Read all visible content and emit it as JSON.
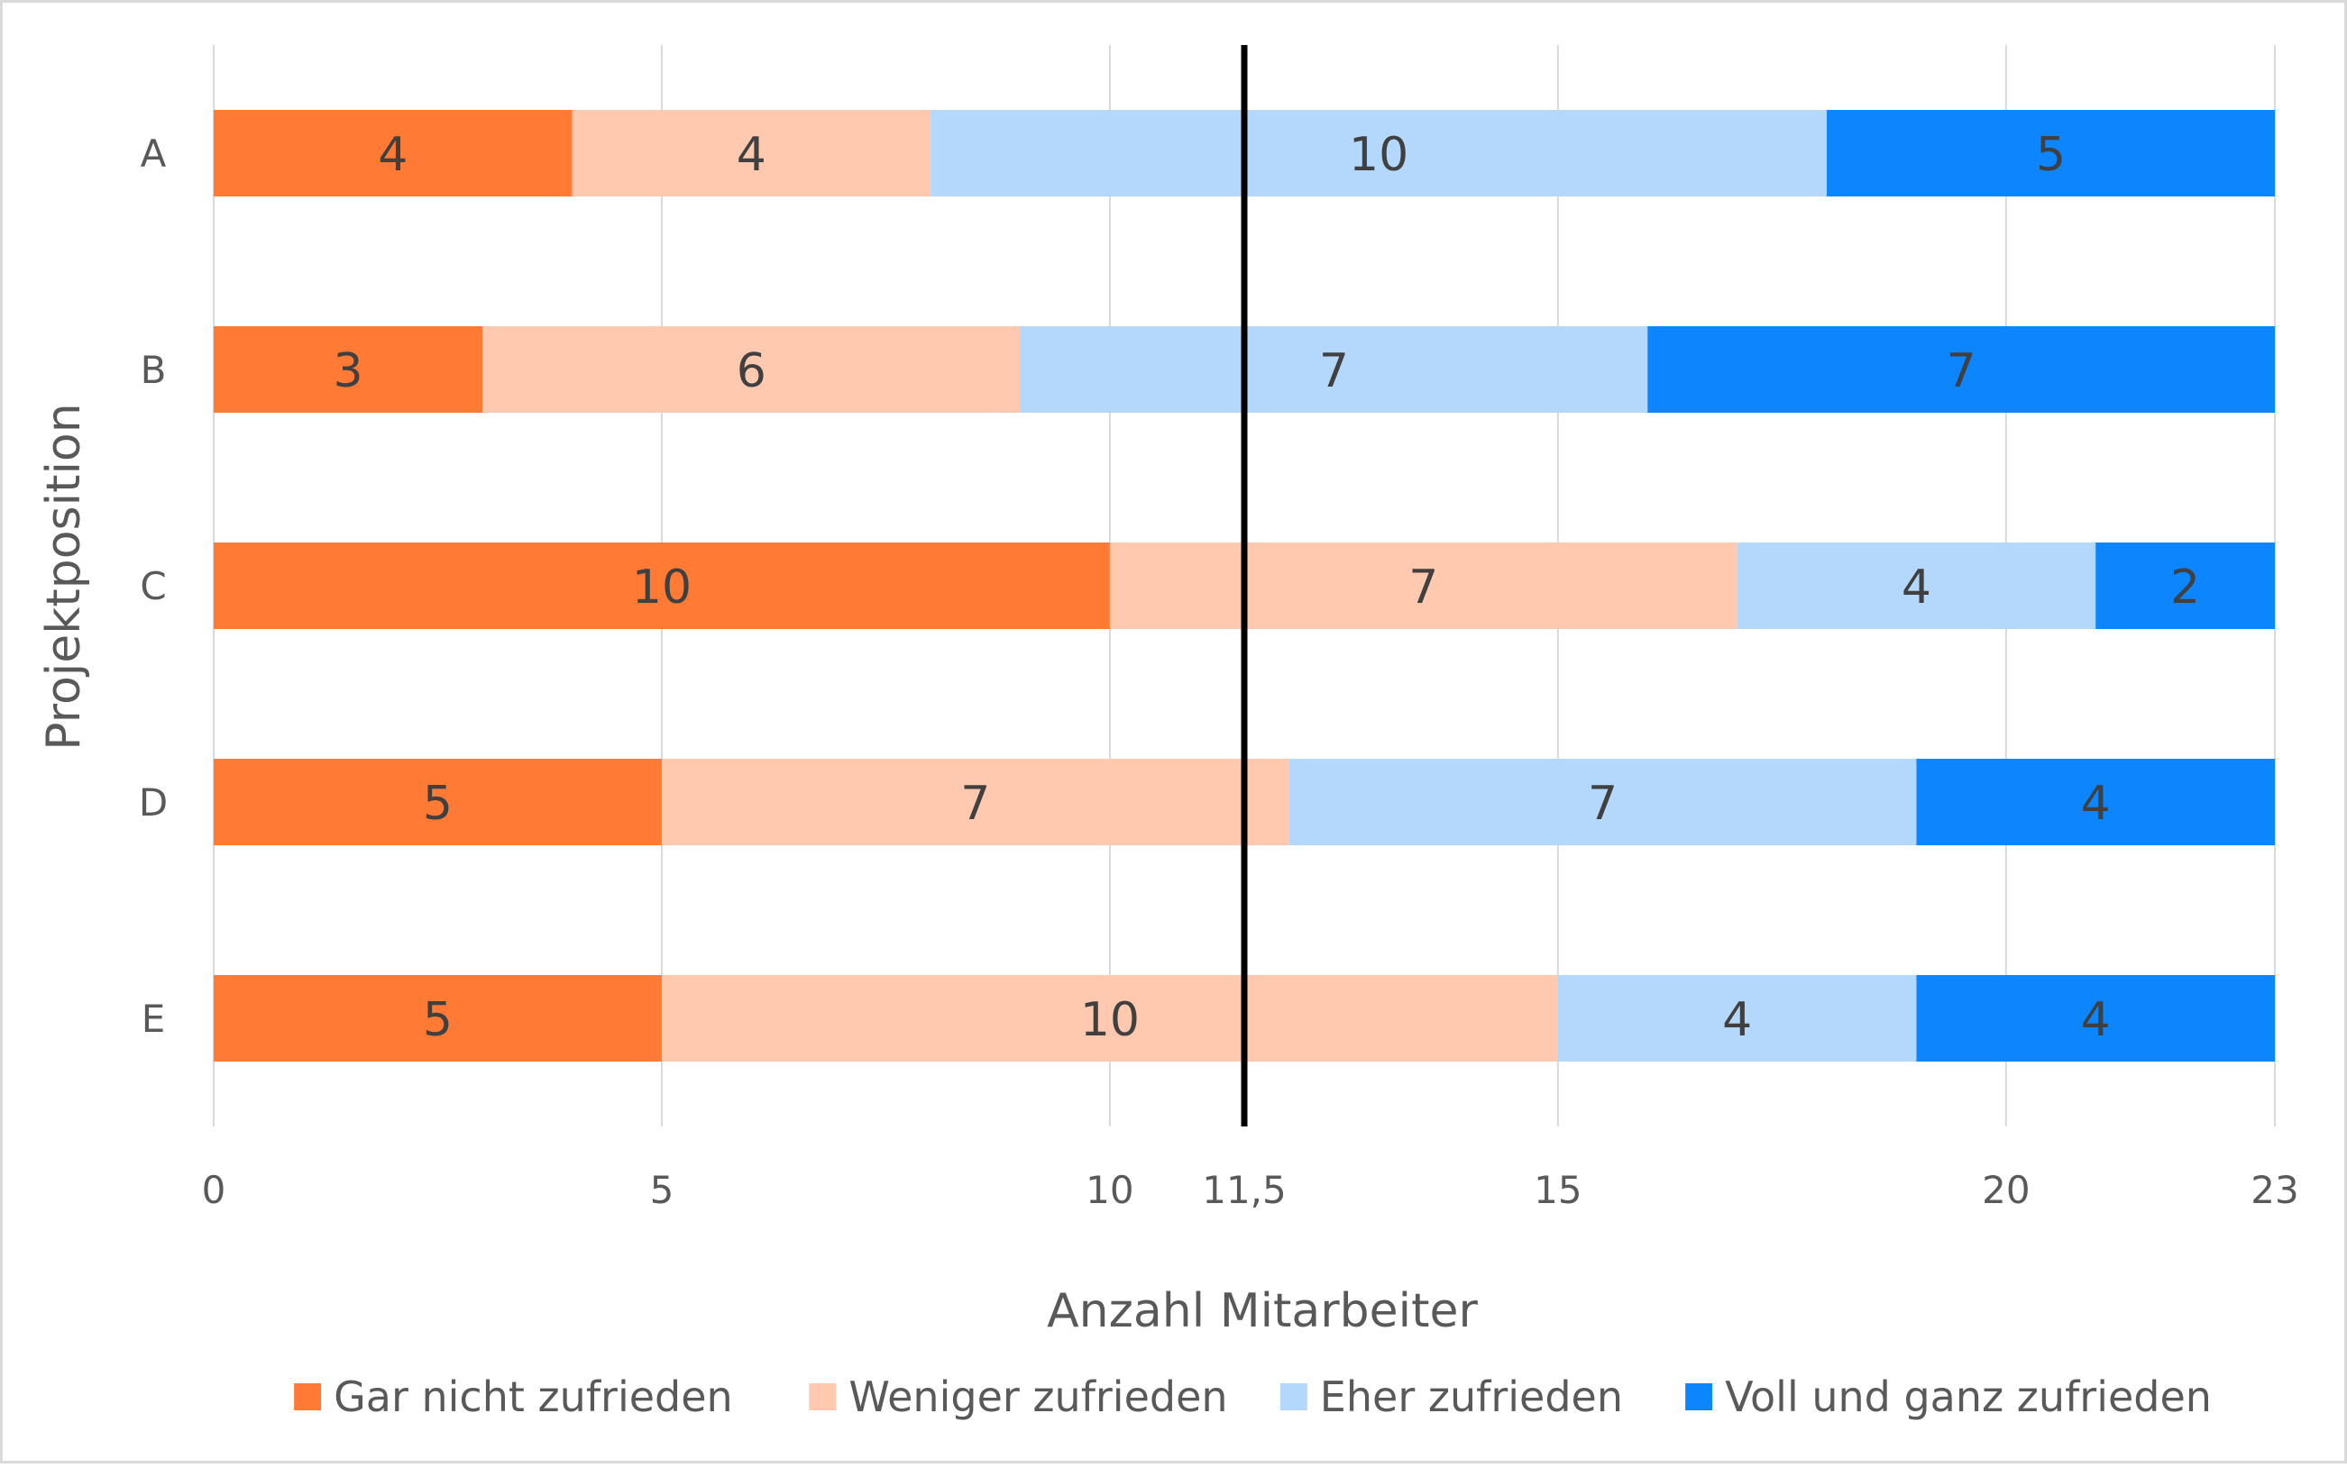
{
  "chart_data": {
    "type": "bar",
    "orientation": "horizontal",
    "stacked": true,
    "title": "",
    "xlabel": "Anzahl Mitarbeiter",
    "ylabel": "Projektposition",
    "categories": [
      "A",
      "B",
      "C",
      "D",
      "E"
    ],
    "xlim": [
      0,
      23
    ],
    "xticks": [
      0,
      5,
      10,
      11.5,
      15,
      20,
      23
    ],
    "xtick_labels": [
      "0",
      "5",
      "10",
      "11,5",
      "15",
      "20",
      "23"
    ],
    "gridlines": [
      0,
      5,
      10,
      15,
      20,
      23
    ],
    "grid": true,
    "reference_line": {
      "x": 11.5,
      "color": "#000000"
    },
    "legend_position": "bottom",
    "series": [
      {
        "name": "Gar nicht zufrieden",
        "color": "#FF7A35",
        "values": [
          4,
          3,
          10,
          5,
          5
        ]
      },
      {
        "name": "Weniger zufrieden",
        "color": "#FFC9B0",
        "values": [
          4,
          6,
          7,
          7,
          10
        ]
      },
      {
        "name": "Eher zufrieden",
        "color": "#B4D8FC",
        "values": [
          10,
          7,
          4,
          7,
          4
        ]
      },
      {
        "name": "Voll und ganz zufrieden",
        "color": "#0D85FD",
        "values": [
          5,
          7,
          2,
          4,
          4
        ]
      }
    ],
    "data_labels": true
  }
}
